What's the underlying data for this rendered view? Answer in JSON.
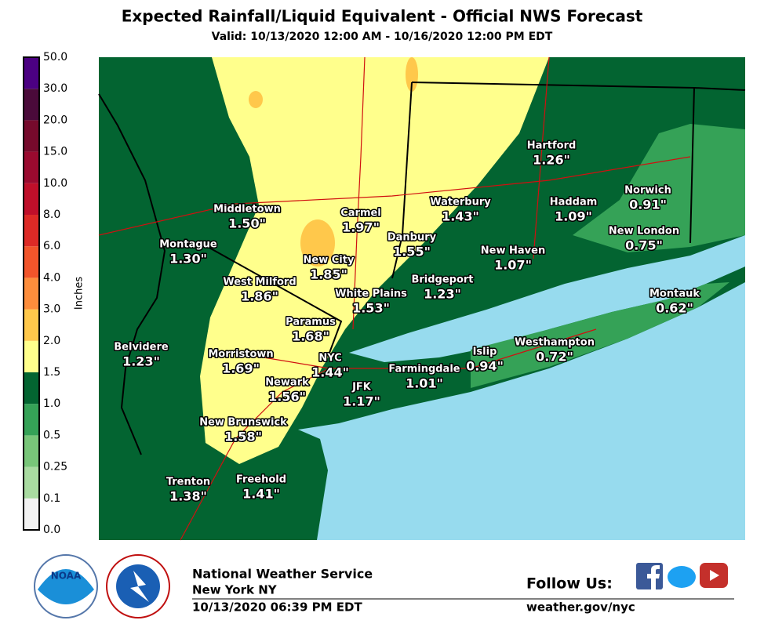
{
  "header": {
    "title": "Expected Rainfall/Liquid Equivalent - Official NWS Forecast",
    "subtitle": "Valid: 10/13/2020 12:00 AM - 10/16/2020 12:00 PM EDT"
  },
  "legend": {
    "title": "Inches",
    "labels": [
      "0.0",
      "0.1",
      "0.25",
      "0.5",
      "1.0",
      "1.5",
      "2.0",
      "3.0",
      "4.0",
      "6.0",
      "8.0",
      "10.0",
      "15.0",
      "20.0",
      "30.0",
      "50.0"
    ],
    "colors": [
      "#f2f2f2",
      "#a9dba1",
      "#78c679",
      "#35a257",
      "#036431",
      "#ffff8c",
      "#ffc84b",
      "#fd8d3c",
      "#f2552b",
      "#dd2a26",
      "#bf0f2a",
      "#9a0a2f",
      "#760a2c",
      "#4a0a3a",
      "#4b0082",
      "#ffdcff"
    ]
  },
  "cities": [
    {
      "name": "Middletown",
      "value": "1.50\""
    },
    {
      "name": "Carmel",
      "value": "1.97\""
    },
    {
      "name": "Hartford",
      "value": "1.26\""
    },
    {
      "name": "Waterbury",
      "value": "1.43\""
    },
    {
      "name": "Haddam",
      "value": "1.09\""
    },
    {
      "name": "Norwich",
      "value": "0.91\""
    },
    {
      "name": "Montague",
      "value": "1.30\""
    },
    {
      "name": "Danbury",
      "value": "1.55\""
    },
    {
      "name": "New London",
      "value": "0.75\""
    },
    {
      "name": "New City",
      "value": "1.85\""
    },
    {
      "name": "New Haven",
      "value": "1.07\""
    },
    {
      "name": "West Milford",
      "value": "1.86\""
    },
    {
      "name": "Bridgeport",
      "value": "1.23\""
    },
    {
      "name": "White Plains",
      "value": "1.53\""
    },
    {
      "name": "Montauk",
      "value": "0.62\""
    },
    {
      "name": "Paramus",
      "value": "1.68\""
    },
    {
      "name": "Belvidere",
      "value": "1.23\""
    },
    {
      "name": "Westhampton",
      "value": "0.72\""
    },
    {
      "name": "Islip",
      "value": "0.94\""
    },
    {
      "name": "Morristown",
      "value": "1.69\""
    },
    {
      "name": "NYC",
      "value": "1.44\""
    },
    {
      "name": "Farmingdale",
      "value": "1.01\""
    },
    {
      "name": "Newark",
      "value": "1.56\""
    },
    {
      "name": "JFK",
      "value": "1.17\""
    },
    {
      "name": "New Brunswick",
      "value": "1.58\""
    },
    {
      "name": "Trenton",
      "value": "1.38\""
    },
    {
      "name": "Freehold",
      "value": "1.41\""
    }
  ],
  "footer": {
    "office": "National Weather Service",
    "location": "New York NY",
    "issued": "10/13/2020 06:39 PM EDT",
    "follow": "Follow Us:",
    "website": "weather.gov/nyc",
    "noaa": "NOAA"
  }
}
